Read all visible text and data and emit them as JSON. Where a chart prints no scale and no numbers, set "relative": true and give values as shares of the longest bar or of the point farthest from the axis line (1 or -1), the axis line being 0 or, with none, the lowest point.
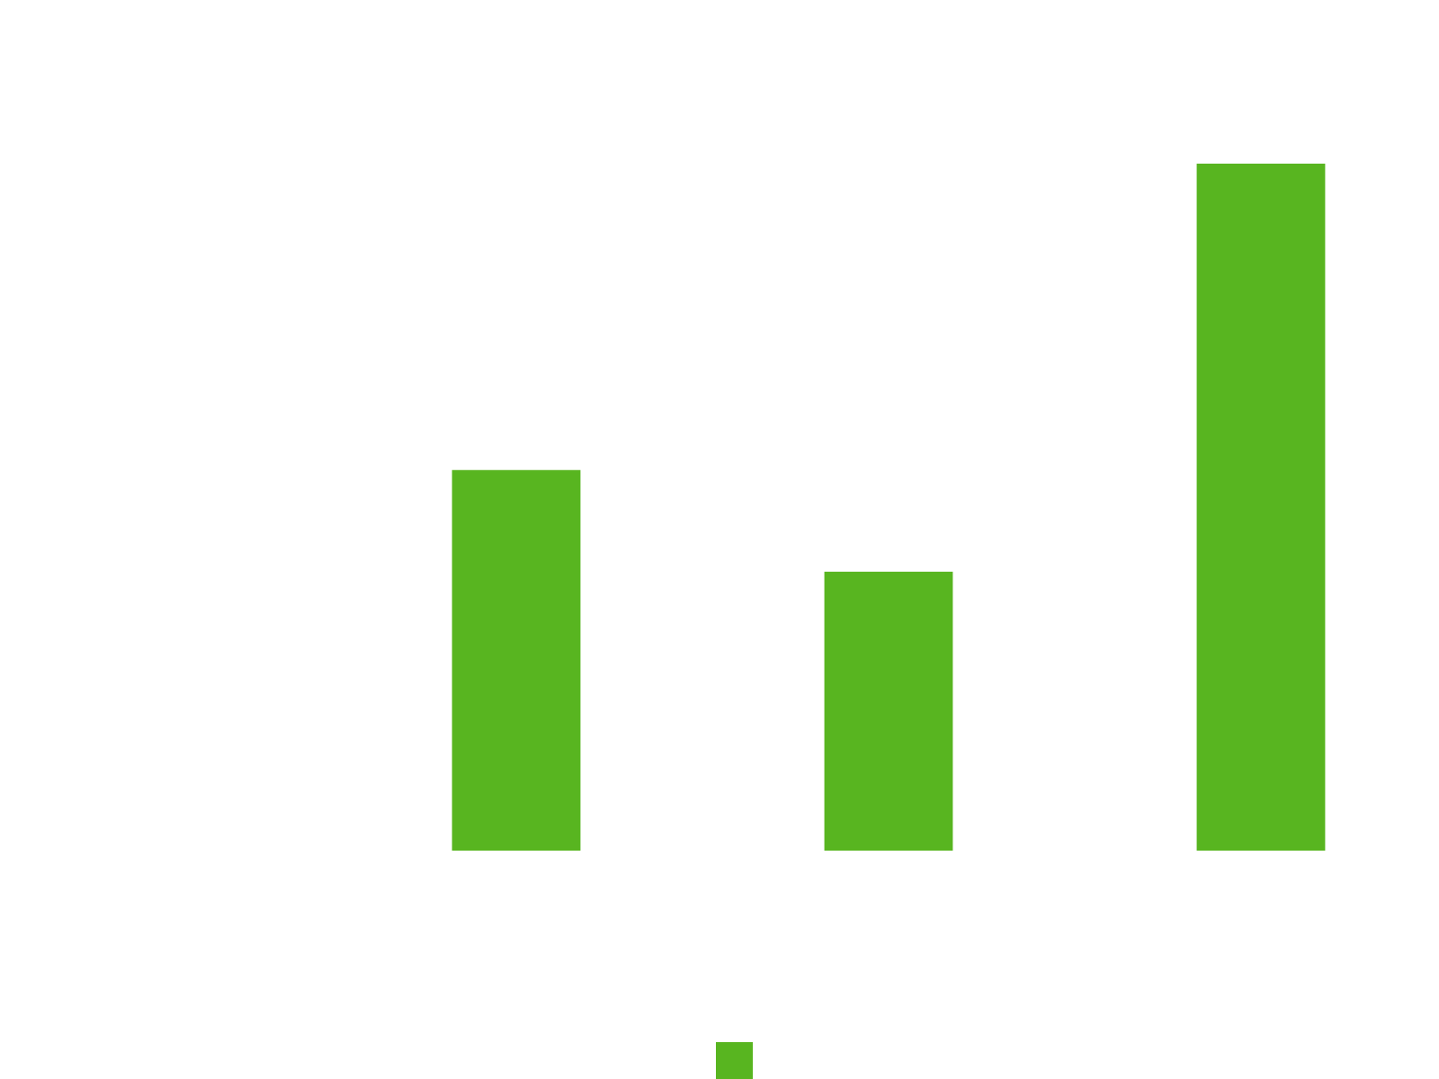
{
  "chart_data": {
    "type": "bar",
    "relative": true,
    "categories": [
      null,
      null,
      null
    ],
    "series": [
      {
        "color": "#58b520",
        "values": [
          0.554,
          0.406,
          1
        ]
      }
    ]
  }
}
